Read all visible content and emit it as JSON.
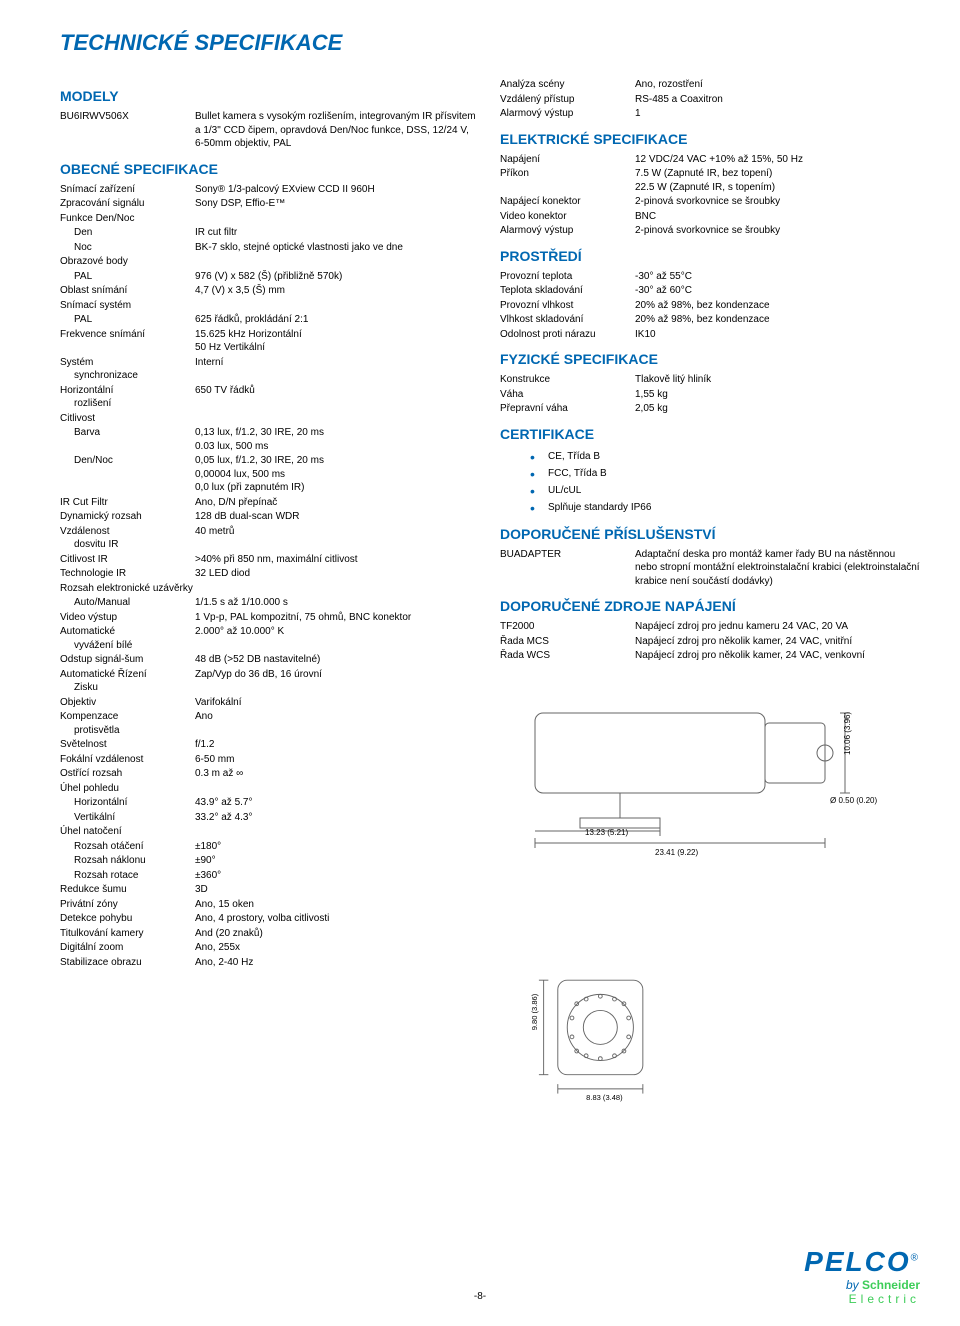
{
  "colors": {
    "brand": "#0067b1",
    "text": "#000000",
    "schneider_green": "#3dcd58",
    "bg": "#ffffff",
    "diagram_line": "#666666"
  },
  "page_title": "TECHNICKÉ SPECIFIKACE",
  "page_number": "-8-",
  "logo": {
    "name": "PELCO",
    "reg": "®"
  },
  "schneider": {
    "by": "by",
    "name": "Schneider",
    "sub": "Electric"
  },
  "left": {
    "sections": [
      {
        "title": "MODELY",
        "rows": [
          {
            "label": "BU6IRWV506X",
            "value": "Bullet kamera s vysokým rozlišením, integrovaným IR přísvitem a 1/3\" CCD čipem, opravdová Den/Noc funkce, DSS, 12/24 V, 6-50mm objektiv, PAL"
          }
        ]
      },
      {
        "title": "OBECNÉ SPECIFIKACE",
        "rows": [
          {
            "label": "Snímací zařízení",
            "value": "Sony® 1/3-palcový EXview CCD II 960H"
          },
          {
            "label": "Zpracování signálu",
            "value": "Sony DSP, Effio-E™"
          },
          {
            "label": "Funkce Den/Noc",
            "value": ""
          },
          {
            "label": "Den",
            "indent": 1,
            "value": "IR cut filtr"
          },
          {
            "label": "Noc",
            "indent": 1,
            "value": "BK-7 sklo, stejné optické vlastnosti jako ve dne"
          },
          {
            "label": "Obrazové body",
            "value": ""
          },
          {
            "label": "PAL",
            "indent": 1,
            "value": "976 (V) x 582 (Š) (přibližně 570k)"
          },
          {
            "label": "Oblast snímání",
            "value": "4,7 (V) x 3,5 (Š) mm"
          },
          {
            "label": "Snímací systém",
            "value": ""
          },
          {
            "label": "PAL",
            "indent": 1,
            "value": "625 řádků, prokládání 2:1"
          },
          {
            "label": "Frekvence snímání",
            "value": "15.625 kHz Horizontální\n50 Hz Vertikální"
          },
          {
            "label": "Systém synchronizace",
            "value": "Interní",
            "multiline_label": [
              "Systém",
              "synchronizace"
            ]
          },
          {
            "label": "Horizontální rozlišení",
            "value": "650 TV řádků",
            "multiline_label": [
              "Horizontální",
              "rozlišení"
            ]
          },
          {
            "label": "Citlivost",
            "value": ""
          },
          {
            "label": "Barva",
            "indent": 1,
            "value": "0,13 lux, f/1.2, 30 IRE, 20 ms\n0.03 lux, 500 ms"
          },
          {
            "label": "Den/Noc",
            "indent": 1,
            "value": "0,05 lux, f/1.2, 30 IRE, 20 ms\n0,00004 lux, 500 ms\n0,0 lux (při zapnutém IR)"
          },
          {
            "label": "IR Cut Filtr",
            "value": "Ano, D/N přepínač"
          },
          {
            "label": "Dynamický rozsah",
            "value": "128 dB dual-scan WDR"
          },
          {
            "label": "Vzdálenost dosvitu IR",
            "value": "40 metrů",
            "multiline_label": [
              "Vzdálenost",
              "dosvitu IR"
            ]
          },
          {
            "label": "Citlivost IR",
            "value": ">40% při 850 nm, maximální citlivost"
          },
          {
            "label": "Technologie IR",
            "value": "32 LED diod"
          },
          {
            "label": "Rozsah elektronické uzávěrky",
            "value": ""
          },
          {
            "label": "Auto/Manual",
            "indent": 1,
            "value": "1/1.5 s až 1/10.000 s"
          },
          {
            "label": "Video výstup",
            "value": "1 Vp-p, PAL kompozitní, 75 ohmů, BNC konektor"
          },
          {
            "label": "Automatické vyvážení bílé",
            "value": "2.000° až 10.000° K",
            "multiline_label": [
              "Automatické",
              "vyvážení bílé"
            ]
          },
          {
            "label": "Odstup signál-šum",
            "value": "48 dB (>52 DB nastavitelné)"
          },
          {
            "label": "Automatické Řízení Zisku",
            "value": "Zap/Vyp do 36 dB, 16 úrovní",
            "multiline_label": [
              "Automatické Řízení",
              "Zisku"
            ]
          },
          {
            "label": "Objektiv",
            "value": "Varifokální"
          },
          {
            "label": "Kompenzace protisvětla",
            "value": "Ano",
            "multiline_label": [
              "Kompenzace",
              "protisvětla"
            ]
          },
          {
            "label": "Světelnost",
            "value": "f/1.2"
          },
          {
            "label": "Fokální vzdálenost",
            "value": "6-50 mm"
          },
          {
            "label": "Ostřící rozsah",
            "value": "0.3 m až ∞"
          },
          {
            "label": "Úhel pohledu",
            "value": ""
          },
          {
            "label": "Horizontální",
            "indent": 1,
            "value": "43.9° až 5.7°"
          },
          {
            "label": "Vertikální",
            "indent": 1,
            "value": "33.2° až 4.3°"
          },
          {
            "label": "Úhel natočení",
            "value": ""
          },
          {
            "label": "Rozsah otáčení",
            "indent": 1,
            "value": "±180°"
          },
          {
            "label": "Rozsah náklonu",
            "indent": 1,
            "value": "±90°"
          },
          {
            "label": "Rozsah rotace",
            "indent": 1,
            "value": "±360°"
          },
          {
            "label": "Redukce šumu",
            "value": "3D"
          },
          {
            "label": "Privátní zóny",
            "value": "Ano, 15 oken"
          },
          {
            "label": "Detekce pohybu",
            "value": "Ano, 4 prostory, volba citlivosti"
          },
          {
            "label": "Titulkování kamery",
            "value": "And (20 znaků)"
          },
          {
            "label": "Digitální zoom",
            "value": "Ano, 255x"
          },
          {
            "label": "Stabilizace obrazu",
            "value": "Ano, 2-40 Hz"
          }
        ]
      }
    ]
  },
  "right": {
    "top_rows": [
      {
        "label": "Analýza scény",
        "value": "Ano, rozostření"
      },
      {
        "label": "Vzdálený přístup",
        "value": "RS-485 a Coaxitron"
      },
      {
        "label": "Alarmový výstup",
        "value": "1"
      }
    ],
    "sections": [
      {
        "title": "ELEKTRICKÉ SPECIFIKACE",
        "rows": [
          {
            "label": "Napájení",
            "value": "12 VDC/24 VAC +10% až 15%, 50 Hz"
          },
          {
            "label": "Příkon",
            "value": "7.5 W (Zapnuté IR, bez topení)\n22.5 W (Zapnuté IR, s topením)"
          },
          {
            "label": "Napájecí konektor",
            "value": "2-pinová svorkovnice se šroubky"
          },
          {
            "label": "Video konektor",
            "value": "BNC"
          },
          {
            "label": "Alarmový výstup",
            "value": "2-pinová svorkovnice se šroubky"
          }
        ]
      },
      {
        "title": "PROSTŘEDÍ",
        "rows": [
          {
            "label": "Provozní teplota",
            "value": "-30° až 55°C"
          },
          {
            "label": "Teplota skladování",
            "value": "-30° až 60°C"
          },
          {
            "label": "Provozní vlhkost",
            "value": "20% až 98%, bez kondenzace"
          },
          {
            "label": "Vlhkost skladování",
            "value": "20% až 98%, bez kondenzace"
          },
          {
            "label": "Odolnost proti nárazu",
            "value": "IK10"
          }
        ]
      },
      {
        "title": "FYZICKÉ SPECIFIKACE",
        "rows": [
          {
            "label": "Konstrukce",
            "value": "Tlakově litý hliník"
          },
          {
            "label": "Váha",
            "value": "1,55 kg"
          },
          {
            "label": "Přepravní váha",
            "value": "2,05 kg"
          }
        ]
      },
      {
        "title": "CERTIFIKACE",
        "bullets": [
          "CE, Třída B",
          "FCC, Třída B",
          "UL/cUL",
          "Splňuje standardy IP66"
        ]
      },
      {
        "title": "DOPORUČENÉ PŘÍSLUŠENSTVÍ",
        "rows": [
          {
            "label": "BUADAPTER",
            "value": "Adaptační deska pro montáž kamer řady BU na nástěnnou nebo stropní montážní elektroinstalační krabici (elektroinstalační krabice není součástí dodávky)"
          }
        ]
      },
      {
        "title": "DOPORUČENÉ ZDROJE NAPÁJENÍ",
        "rows": [
          {
            "label": "TF2000",
            "value": "Napájecí zdroj pro jednu kameru 24 VAC, 20 VA"
          },
          {
            "label": "Řada MCS",
            "value": "Napájecí zdroj pro několik kamer, 24 VAC, vnitřní"
          },
          {
            "label": "Řada WCS",
            "value": "Napájecí zdroj pro několik kamer, 24 VAC, venkovní"
          }
        ]
      }
    ]
  },
  "diagrams": {
    "side": {
      "width_label": "23.41 (9.22)",
      "width_inner_label": "13.23 (5.21)",
      "height_label": "10.06 (3.96)",
      "conn_label": "Ø 0.50 (0.20)"
    },
    "front": {
      "width_label": "8.83 (3.48)",
      "height_label": "9.80 (3.86)"
    }
  }
}
